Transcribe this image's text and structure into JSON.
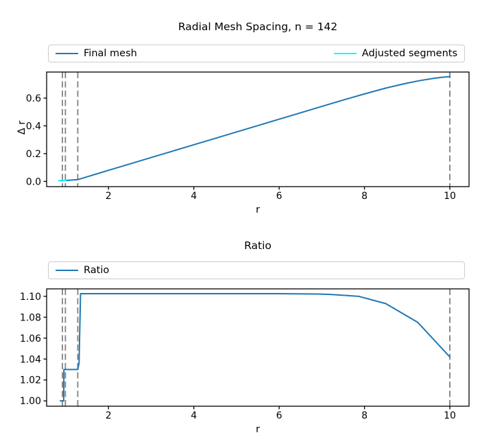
{
  "figure": {
    "background": "#ffffff"
  },
  "chart_data": [
    {
      "type": "line",
      "title": "Radial Mesh Spacing, n = 142",
      "xlabel": "r",
      "ylabel": "Δ r",
      "xlim": [
        0.55,
        10.45
      ],
      "ylim": [
        -0.0375,
        0.7875
      ],
      "xticks": [
        2,
        4,
        6,
        8,
        10
      ],
      "xtick_labels": [
        "2",
        "4",
        "6",
        "8",
        "10"
      ],
      "yticks": [
        0.0,
        0.2,
        0.4,
        0.6
      ],
      "ytick_labels": [
        "0.0",
        "0.2",
        "0.4",
        "0.6"
      ],
      "grid": false,
      "legend_position": "expanded row above axes",
      "legend": [
        {
          "label": "Final mesh",
          "color": "#1f77b4"
        },
        {
          "label": "Adjusted segments",
          "color": "#00ffff"
        }
      ],
      "vlines": {
        "x": [
          0.92,
          0.99,
          1.28,
          10.0
        ],
        "color": "#808080",
        "style": "dashed"
      },
      "series": [
        {
          "name": "Final mesh",
          "color": "#1f77b4",
          "x": [
            0.84,
            0.92,
            1.0,
            1.14,
            1.28,
            1.45,
            1.7,
            2.0,
            2.5,
            3.0,
            3.5,
            4.0,
            4.5,
            5.0,
            5.5,
            6.0,
            6.5,
            7.0,
            7.5,
            8.0,
            8.5,
            9.0,
            9.3,
            9.6,
            9.8,
            10.0
          ],
          "y": [
            0.006,
            0.006,
            0.007,
            0.01,
            0.013,
            0.029,
            0.052,
            0.08,
            0.126,
            0.172,
            0.218,
            0.264,
            0.31,
            0.356,
            0.402,
            0.448,
            0.494,
            0.54,
            0.586,
            0.63,
            0.672,
            0.708,
            0.726,
            0.741,
            0.749,
            0.755
          ]
        },
        {
          "name": "Adjusted segments",
          "color": "#00ffff",
          "x": [
            0.84,
            1.0
          ],
          "y": [
            0.006,
            0.007
          ]
        }
      ]
    },
    {
      "type": "line",
      "title": "Ratio",
      "xlabel": "r",
      "ylabel": "",
      "xlim": [
        0.55,
        10.45
      ],
      "ylim": [
        0.9949,
        1.1071
      ],
      "xticks": [
        2,
        4,
        6,
        8,
        10
      ],
      "xtick_labels": [
        "2",
        "4",
        "6",
        "8",
        "10"
      ],
      "yticks": [
        1.0,
        1.02,
        1.04,
        1.06,
        1.08,
        1.1
      ],
      "ytick_labels": [
        "1.00",
        "1.02",
        "1.04",
        "1.06",
        "1.08",
        "1.10"
      ],
      "grid": false,
      "legend_position": "row above axes, entry at left",
      "legend": [
        {
          "label": "Ratio",
          "color": "#1f77b4"
        }
      ],
      "vlines": {
        "x": [
          0.92,
          0.99,
          1.28,
          10.0
        ],
        "color": "#808080",
        "style": "dashed"
      },
      "series": [
        {
          "name": "Ratio",
          "color": "#1f77b4",
          "x": [
            0.87,
            0.95,
            0.955,
            1.28,
            1.31,
            1.345,
            2.0,
            3.0,
            4.0,
            5.0,
            6.0,
            6.9,
            7.2,
            7.86,
            8.5,
            9.25,
            10.0
          ],
          "y": [
            1.0,
            1.0,
            1.03,
            1.03,
            1.036,
            1.1025,
            1.1025,
            1.1025,
            1.1025,
            1.1025,
            1.1025,
            1.1022,
            1.1018,
            1.1,
            1.093,
            1.075,
            1.042
          ]
        }
      ]
    }
  ]
}
